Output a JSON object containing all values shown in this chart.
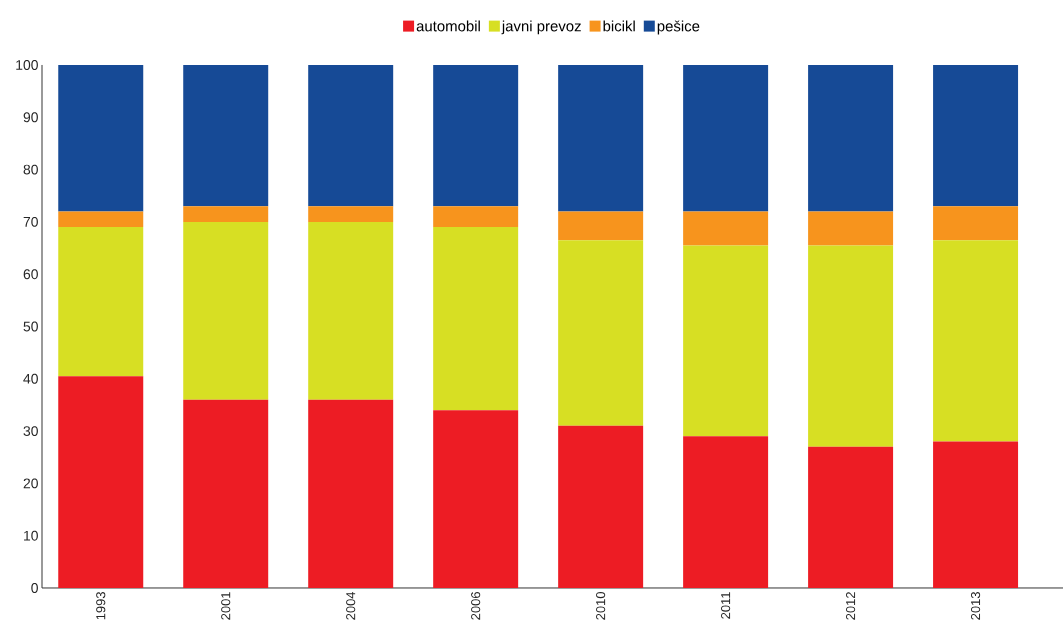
{
  "chart_data": {
    "type": "bar",
    "stacked": true,
    "legend": "top",
    "categories": [
      "1993",
      "2001",
      "2004",
      "2006",
      "2010",
      "2011",
      "2012",
      "2013"
    ],
    "series": [
      {
        "name": "automobil",
        "color": "#ed1c24",
        "values": [
          40.5,
          36,
          36,
          34,
          31,
          29,
          27,
          28
        ]
      },
      {
        "name": "javni prevoz",
        "color": "#d7df23",
        "values": [
          28.5,
          34,
          34,
          35,
          35.5,
          36.5,
          38.5,
          38.5
        ]
      },
      {
        "name": "bicikl",
        "color": "#f7941d",
        "values": [
          3,
          3,
          3,
          4,
          5.5,
          6.5,
          6.5,
          6.5
        ]
      },
      {
        "name": "pešice",
        "color": "#164a96",
        "values": [
          28,
          27,
          27,
          27,
          28,
          28,
          28,
          27
        ]
      }
    ],
    "ylim": [
      0,
      100
    ],
    "yticks": [
      0,
      10,
      20,
      30,
      40,
      50,
      60,
      70,
      80,
      90,
      100
    ]
  }
}
